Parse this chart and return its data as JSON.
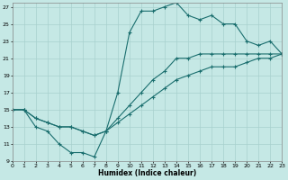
{
  "xlabel": "Humidex (Indice chaleur)",
  "bg_color": "#c5e8e5",
  "grid_color": "#a8d0ce",
  "line_color": "#1a6e6e",
  "xlim": [
    0,
    23
  ],
  "ylim": [
    9,
    27.5
  ],
  "xticks": [
    0,
    1,
    2,
    3,
    4,
    5,
    6,
    7,
    8,
    9,
    10,
    11,
    12,
    13,
    14,
    15,
    16,
    17,
    18,
    19,
    20,
    21,
    22,
    23
  ],
  "yticks": [
    9,
    11,
    13,
    15,
    17,
    19,
    21,
    23,
    25,
    27
  ],
  "line1_x": [
    0,
    1,
    2,
    3,
    4,
    5,
    6,
    7,
    8,
    9,
    10,
    11,
    12,
    13,
    14,
    15,
    16,
    17,
    18,
    19,
    20,
    21,
    22,
    23
  ],
  "line1_y": [
    15,
    15,
    13,
    12.5,
    11,
    10,
    10,
    9.5,
    12.5,
    17,
    24,
    26.5,
    26.5,
    27,
    27.5,
    26,
    25.5,
    26,
    25,
    25,
    23,
    22.5,
    23,
    21.5
  ],
  "line2_x": [
    0,
    1,
    2,
    3,
    4,
    5,
    6,
    7,
    8,
    9,
    10,
    11,
    12,
    13,
    14,
    15,
    16,
    17,
    18,
    19,
    20,
    21,
    22,
    23
  ],
  "line2_y": [
    15,
    15,
    14,
    13.5,
    13,
    13,
    12.5,
    12,
    12.5,
    14,
    15.5,
    17,
    18.5,
    19.5,
    21,
    21,
    21.5,
    21.5,
    21.5,
    21.5,
    21.5,
    21.5,
    21.5,
    21.5
  ],
  "line3_x": [
    0,
    1,
    2,
    3,
    4,
    5,
    6,
    7,
    8,
    9,
    10,
    11,
    12,
    13,
    14,
    15,
    16,
    17,
    18,
    19,
    20,
    21,
    22,
    23
  ],
  "line3_y": [
    15,
    15,
    14,
    13.5,
    13,
    13,
    12.5,
    12,
    12.5,
    13.5,
    14.5,
    15.5,
    16.5,
    17.5,
    18.5,
    19,
    19.5,
    20,
    20,
    20,
    20.5,
    21,
    21,
    21.5
  ]
}
